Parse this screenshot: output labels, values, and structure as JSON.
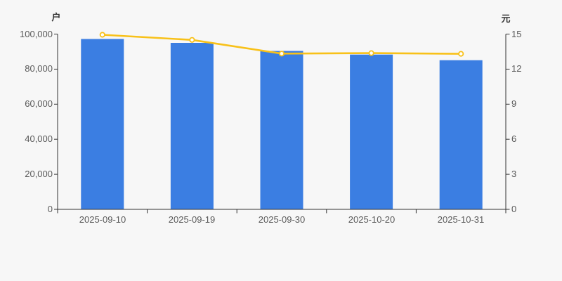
{
  "page": {
    "background": "#f7f7f7"
  },
  "colors": {
    "bar": "#3b7ee2",
    "line": "#f8c119",
    "marker_fill": "#ffffff",
    "axis": "#333333",
    "tick_text": "#595959",
    "unit_text": "#333333"
  },
  "chart_data": {
    "type": "bar",
    "title": "",
    "categories": [
      "2025-09-10",
      "2025-09-19",
      "2025-09-30",
      "2025-10-20",
      "2025-10-31"
    ],
    "series": [
      {
        "name": "户",
        "type": "bar",
        "axis": "left",
        "color": "#3b7ee2",
        "values": [
          97200,
          95000,
          90400,
          88300,
          85100
        ]
      },
      {
        "name": "元",
        "type": "line",
        "axis": "right",
        "color": "#f8c119",
        "marker_fill": "#ffffff",
        "values": [
          14.94,
          14.5,
          13.33,
          13.37,
          13.31
        ]
      }
    ],
    "left_axis": {
      "unit": "户",
      "min": 0,
      "max": 100000,
      "tick_labels": [
        "0",
        "20,000",
        "40,000",
        "60,000",
        "80,000",
        "100,000"
      ]
    },
    "right_axis": {
      "unit": "元",
      "min": 0,
      "max": 15,
      "tick_labels": [
        "0",
        "3",
        "6",
        "9",
        "12",
        "15"
      ]
    },
    "grid": false,
    "legend": false
  }
}
